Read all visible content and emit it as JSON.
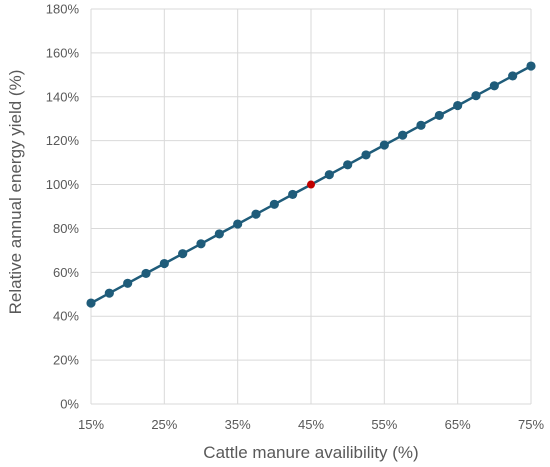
{
  "chart_data": {
    "type": "line",
    "title": "",
    "xlabel": "Cattle manure availibility (%)",
    "ylabel": "Relative annual energy yield (%)",
    "xlim": [
      15,
      75
    ],
    "ylim": [
      0,
      180
    ],
    "x_ticks": [
      15,
      25,
      35,
      45,
      55,
      65,
      75
    ],
    "y_ticks": [
      0,
      20,
      40,
      60,
      80,
      100,
      120,
      140,
      160,
      180
    ],
    "x_tick_labels": [
      "15%",
      "25%",
      "35%",
      "45%",
      "55%",
      "65%",
      "75%"
    ],
    "y_tick_labels": [
      "0%",
      "20%",
      "40%",
      "60%",
      "80%",
      "100%",
      "120%",
      "140%",
      "160%",
      "180%"
    ],
    "grid": true,
    "legend": "none",
    "series": [
      {
        "color": "#1f5c7a",
        "x": [
          15,
          17.5,
          20,
          22.5,
          25,
          27.5,
          30,
          32.5,
          35,
          37.5,
          40,
          42.5,
          45,
          47.5,
          50,
          52.5,
          55,
          57.5,
          60,
          62.5,
          65,
          67.5,
          70,
          72.5,
          75
        ],
        "y": [
          46,
          50.5,
          55,
          59.5,
          64,
          68.5,
          73,
          77.5,
          82,
          86.5,
          91,
          95.5,
          100,
          104.5,
          109,
          113.5,
          118,
          122.5,
          127,
          131.5,
          136,
          140.5,
          145,
          149.5,
          154
        ]
      }
    ],
    "highlight_point": {
      "x": 45,
      "y": 100,
      "color": "#c00000"
    }
  }
}
